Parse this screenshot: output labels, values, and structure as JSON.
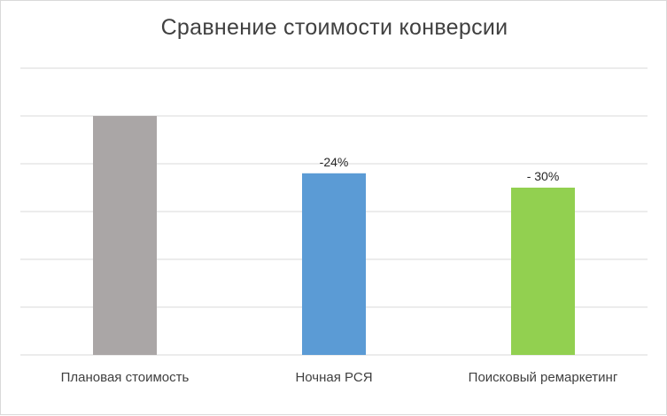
{
  "chart_data": {
    "type": "bar",
    "title": "Сравнение стоимости конверсии",
    "xlabel": "",
    "ylabel": "",
    "categories": [
      "Плановая стоимость",
      "Ночная РСЯ",
      "Поисковый ремаркетинг"
    ],
    "values": [
      100,
      76,
      70
    ],
    "data_labels": [
      "",
      "-24%",
      "- 30%"
    ],
    "colors": [
      "#aaa6a6",
      "#5b9bd5",
      "#92d050"
    ],
    "ylim": [
      0,
      120
    ],
    "grid": true,
    "legend": "none"
  }
}
